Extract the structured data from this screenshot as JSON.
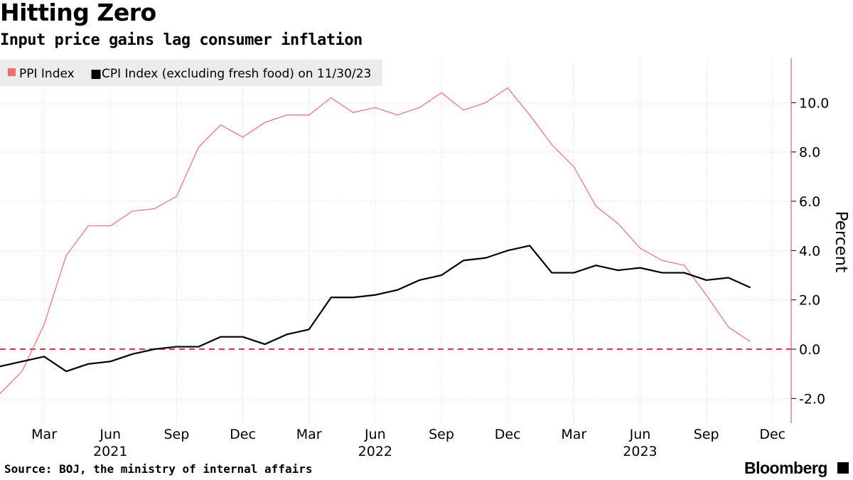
{
  "title": "Hitting Zero",
  "subtitle": "Input price gains lag consumer inflation",
  "source": "Source: BOJ, the ministry of internal affairs",
  "brand": "Bloomberg",
  "colors": {
    "ppi": "#f36b6b",
    "cpi": "#000000",
    "zero_line": "#e8304a",
    "legend_bg": "#ececec",
    "grid": "#cfcfcf"
  },
  "chart_data": {
    "type": "line",
    "ylabel": "Percent",
    "ylim": [
      -3.0,
      11.8
    ],
    "y_ticks": [
      -2.0,
      0.0,
      2.0,
      4.0,
      6.0,
      8.0,
      10.0
    ],
    "y_tick_labels": [
      "-2.0",
      "0.0",
      "2.0",
      "4.0",
      "6.0",
      "8.0",
      "10.0"
    ],
    "y_axis_position": "right",
    "grid": "horizontal dotted",
    "x_tick_labels": [
      "Mar",
      "Jun",
      "Sep",
      "Dec",
      "Mar",
      "Jun",
      "Sep",
      "Dec",
      "Mar",
      "Jun",
      "Sep",
      "Dec"
    ],
    "x_tick_dates": [
      "2021-03",
      "2021-06",
      "2021-09",
      "2021-12",
      "2022-03",
      "2022-06",
      "2022-09",
      "2022-12",
      "2023-03",
      "2023-06",
      "2023-09",
      "2023-12"
    ],
    "year_labels": [
      "2021",
      "2022",
      "2023"
    ],
    "year_label_dates": [
      "2021-06",
      "2022-06",
      "2023-06"
    ],
    "x": [
      "2021-01",
      "2021-02",
      "2021-03",
      "2021-04",
      "2021-05",
      "2021-06",
      "2021-07",
      "2021-08",
      "2021-09",
      "2021-10",
      "2021-11",
      "2021-12",
      "2022-01",
      "2022-02",
      "2022-03",
      "2022-04",
      "2022-05",
      "2022-06",
      "2022-07",
      "2022-08",
      "2022-09",
      "2022-10",
      "2022-11",
      "2022-12",
      "2023-01",
      "2023-02",
      "2023-03",
      "2023-04",
      "2023-05",
      "2023-06",
      "2023-07",
      "2023-08",
      "2023-09",
      "2023-10",
      "2023-11"
    ],
    "series": [
      {
        "name": "PPI Index",
        "values": [
          -1.8,
          -0.9,
          1.0,
          3.8,
          5.0,
          5.0,
          5.6,
          5.7,
          6.2,
          8.2,
          9.1,
          8.6,
          9.2,
          9.5,
          9.5,
          10.2,
          9.6,
          9.8,
          9.5,
          9.8,
          10.4,
          9.7,
          10.0,
          10.6,
          9.5,
          8.3,
          7.4,
          5.8,
          5.1,
          4.1,
          3.6,
          3.4,
          2.2,
          0.9,
          0.3
        ]
      },
      {
        "name": "CPI Index (excluding fresh food) on 11/30/23",
        "values": [
          -0.7,
          -0.5,
          -0.3,
          -0.9,
          -0.6,
          -0.5,
          -0.2,
          0.0,
          0.1,
          0.1,
          0.5,
          0.5,
          0.2,
          0.6,
          0.8,
          2.1,
          2.1,
          2.2,
          2.4,
          2.8,
          3.0,
          3.6,
          3.7,
          4.0,
          4.2,
          3.1,
          3.1,
          3.4,
          3.2,
          3.3,
          3.1,
          3.1,
          2.8,
          2.9,
          2.5
        ]
      }
    ],
    "reference_line": {
      "value": 0.0,
      "style": "dashed"
    },
    "legend_position": "top-left"
  }
}
